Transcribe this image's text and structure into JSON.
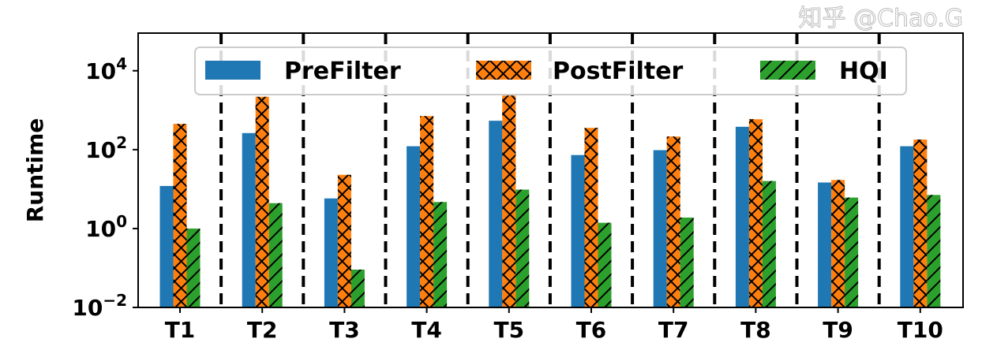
{
  "chart_data": {
    "type": "bar",
    "title": "",
    "xlabel": "",
    "ylabel": "Runtime",
    "yscale": "log",
    "ylim": [
      0.01,
      90000
    ],
    "yticks": [
      {
        "value": 0.01,
        "base": "10",
        "exp": "−2"
      },
      {
        "value": 1,
        "base": "10",
        "exp": "0"
      },
      {
        "value": 100,
        "base": "10",
        "exp": "2"
      },
      {
        "value": 10000,
        "base": "10",
        "exp": "4"
      }
    ],
    "categories": [
      "T1",
      "T2",
      "T3",
      "T4",
      "T5",
      "T6",
      "T7",
      "T8",
      "T9",
      "T10"
    ],
    "series": [
      {
        "name": "PreFilter",
        "color": "#1f77b4",
        "hatch": "none",
        "values": [
          12,
          263,
          5.8,
          122,
          540,
          73,
          97,
          380,
          14.7,
          122
        ]
      },
      {
        "name": "PostFilter",
        "color": "#ff7f0e",
        "hatch": "cross",
        "values": [
          450,
          2190,
          23,
          710,
          2350,
          356,
          215,
          590,
          17,
          180
        ]
      },
      {
        "name": "HQI",
        "color": "#2ca02c",
        "hatch": "diagonal",
        "values": [
          1.0,
          4.4,
          0.091,
          4.7,
          9.7,
          1.4,
          1.9,
          16,
          6.1,
          7.1
        ]
      }
    ],
    "separators": "dashed vertical lines between groups",
    "legend_position": "top-center",
    "grid": false
  },
  "watermark": "知乎 @Chao.G"
}
